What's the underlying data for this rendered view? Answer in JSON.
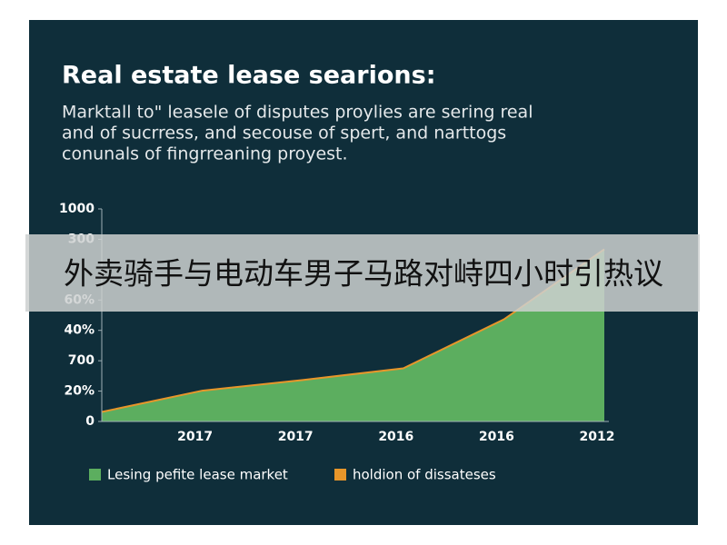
{
  "chart_data": {
    "type": "area",
    "title": "Real estate lease searions:",
    "subtitle": [
      "Marktall to\" leasele of disputes proylies are sering real",
      "and of sucrress, and secouse of spert, and narttogs",
      "conunals of fingrreaning proyest."
    ],
    "categories": [
      null,
      "2017",
      "2017",
      "2016",
      "2016",
      "2012"
    ],
    "series": [
      {
        "name": "Lesing pefite lease market",
        "color": "#5cae5f",
        "values": [
          45,
          145,
          195,
          250,
          480,
          810
        ]
      },
      {
        "name": "holdion of dissateses",
        "color": "#e8962a",
        "values": [
          45,
          145,
          195,
          250,
          480,
          810
        ]
      }
    ],
    "ylim": [
      0,
      1000
    ],
    "yticks": [
      0,
      {
        "value": 142.9,
        "label": "20%"
      },
      {
        "value": 285.7,
        "label": "700"
      },
      {
        "value": 428.6,
        "label": "40%"
      },
      {
        "value": 571.4,
        "label": "60%"
      },
      {
        "value": 857.1,
        "label": "300"
      },
      1000
    ],
    "banner": "外卖骑手与电动车男子马路对峙四小时引热议"
  }
}
